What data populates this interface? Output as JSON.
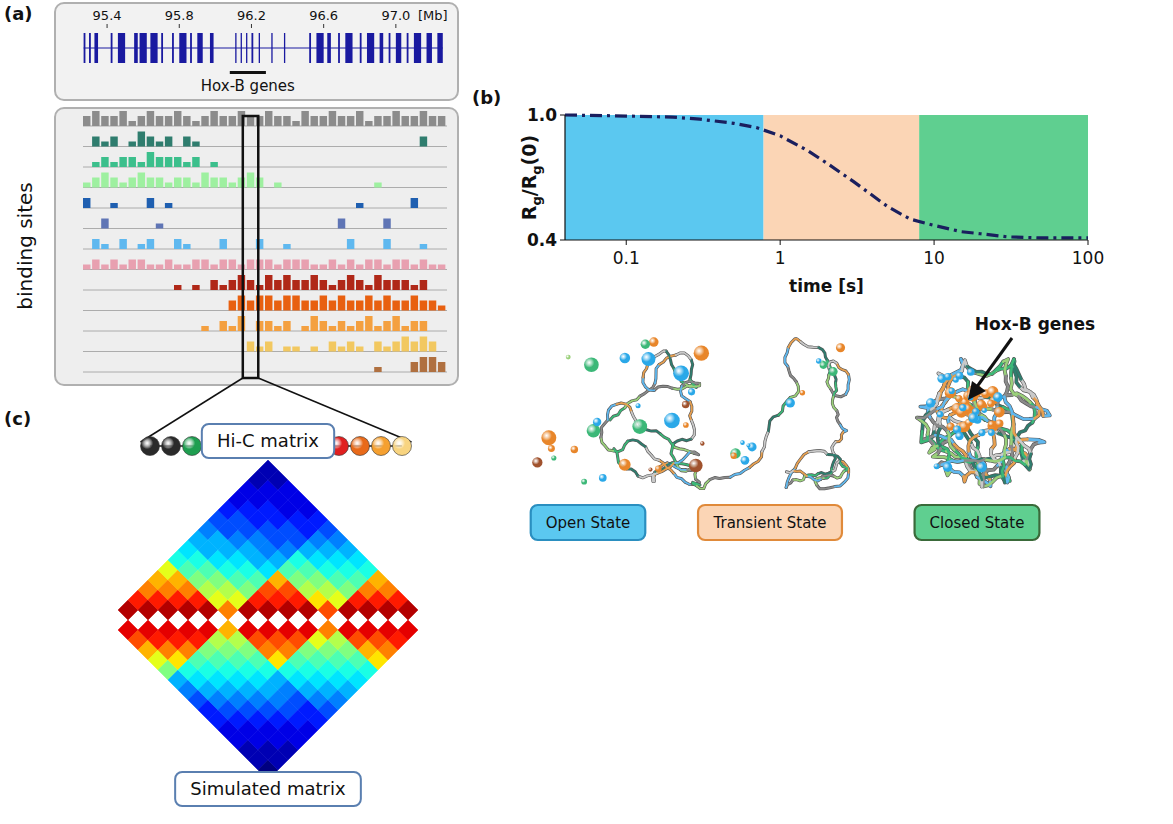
{
  "panel_a": {
    "letter": "(a)",
    "genome_axis": {
      "xlim": [
        95.25,
        97.3
      ],
      "ticks": [
        95.4,
        95.8,
        96.2,
        96.6,
        {
          "value": 97,
          "label": "97.0"
        }
      ],
      "unit": "[Mb]"
    },
    "genes": [
      [
        95.27,
        95.28
      ],
      [
        95.3,
        95.31
      ],
      [
        95.33,
        95.35
      ],
      [
        95.42,
        95.43
      ],
      [
        95.46,
        95.5
      ],
      [
        95.55,
        95.57
      ],
      [
        95.58,
        95.62
      ],
      [
        95.64,
        95.68
      ],
      [
        95.7,
        95.71
      ],
      [
        95.76,
        95.77
      ],
      [
        95.8,
        95.84
      ],
      [
        95.86,
        95.87
      ],
      [
        95.9,
        95.93
      ],
      [
        95.97,
        95.99
      ],
      [
        96.11,
        96.115
      ],
      [
        96.14,
        96.145
      ],
      [
        96.17,
        96.175
      ],
      [
        96.2,
        96.21
      ],
      [
        96.24,
        96.245
      ],
      [
        96.31,
        96.315
      ],
      [
        96.38,
        96.385
      ],
      [
        96.52,
        96.53
      ],
      [
        96.56,
        96.6
      ],
      [
        96.62,
        96.64
      ],
      [
        96.68,
        96.69
      ],
      [
        96.72,
        96.76
      ],
      [
        96.8,
        96.81
      ],
      [
        96.84,
        96.88
      ],
      [
        96.91,
        96.93
      ],
      [
        96.96,
        96.97
      ],
      [
        97.0,
        97.03
      ],
      [
        97.06,
        97.07
      ],
      [
        97.1,
        97.14
      ],
      [
        97.17,
        97.2
      ],
      [
        97.23,
        97.26
      ]
    ],
    "gene_cluster": {
      "label": "Hox-B genes",
      "from": 96.08,
      "to": 96.28
    },
    "tracks_title": "binding sites",
    "tracks": [
      {
        "color": "#8c8c8c",
        "values": [
          2,
          3,
          2,
          2,
          3,
          1,
          2,
          3,
          2,
          2,
          3,
          2,
          1,
          2,
          3,
          2,
          2,
          3,
          2,
          2,
          3,
          2,
          2,
          1,
          3,
          2,
          2,
          3,
          2,
          2,
          3,
          1,
          2,
          2,
          3,
          2,
          2,
          3,
          2,
          2
        ]
      },
      {
        "color": "#2f7d6e",
        "values": [
          0,
          2,
          1,
          2,
          0,
          1,
          3,
          2,
          1,
          2,
          0,
          2,
          1,
          0,
          0,
          0,
          0,
          0,
          0,
          0,
          0,
          0,
          0,
          0,
          0,
          0,
          0,
          0,
          0,
          0,
          0,
          0,
          0,
          0,
          0,
          0,
          0,
          2,
          0,
          0
        ]
      },
      {
        "color": "#3cbf8c",
        "values": [
          0,
          1,
          2,
          1,
          2,
          2,
          1,
          3,
          2,
          2,
          2,
          1,
          2,
          0,
          1,
          0,
          0,
          0,
          0,
          0,
          0,
          0,
          0,
          0,
          0,
          0,
          0,
          0,
          0,
          0,
          0,
          0,
          0,
          0,
          0,
          0,
          0,
          0,
          0,
          0
        ]
      },
      {
        "color": "#9ef0a0",
        "values": [
          1,
          2,
          3,
          2,
          1,
          2,
          3,
          2,
          2,
          1,
          2,
          2,
          1,
          3,
          2,
          2,
          1,
          2,
          3,
          2,
          0,
          1,
          0,
          0,
          0,
          0,
          0,
          0,
          0,
          0,
          0,
          0,
          1,
          0,
          0,
          0,
          0,
          0,
          0,
          0
        ]
      },
      {
        "color": "#1f5fb0",
        "values": [
          2,
          0,
          0,
          1,
          0,
          0,
          0,
          2,
          0,
          1,
          0,
          0,
          0,
          0,
          0,
          0,
          0,
          0,
          0,
          0,
          0,
          0,
          0,
          0,
          0,
          0,
          0,
          0,
          0,
          0,
          1,
          0,
          0,
          0,
          0,
          0,
          2,
          0,
          0,
          0
        ]
      },
      {
        "color": "#5f75b5",
        "values": [
          0,
          0,
          2,
          0,
          0,
          0,
          0,
          0,
          1,
          0,
          0,
          0,
          0,
          0,
          0,
          0,
          0,
          0,
          0,
          0,
          0,
          0,
          0,
          0,
          0,
          0,
          0,
          0,
          2,
          0,
          0,
          0,
          0,
          2,
          0,
          0,
          0,
          0,
          0,
          0
        ]
      },
      {
        "color": "#5fb8ef",
        "values": [
          0,
          2,
          1,
          0,
          2,
          0,
          1,
          2,
          0,
          0,
          2,
          1,
          0,
          0,
          0,
          2,
          0,
          0,
          0,
          2,
          0,
          0,
          1,
          0,
          0,
          0,
          0,
          0,
          0,
          2,
          0,
          0,
          0,
          2,
          0,
          0,
          0,
          1,
          0,
          0
        ]
      },
      {
        "color": "#e8a0b0",
        "values": [
          1,
          2,
          1,
          2,
          1,
          2,
          2,
          1,
          1,
          2,
          1,
          1,
          2,
          2,
          1,
          2,
          2,
          1,
          2,
          2,
          2,
          1,
          2,
          2,
          2,
          1,
          1,
          2,
          1,
          2,
          1,
          2,
          2,
          1,
          2,
          2,
          1,
          2,
          1,
          1
        ]
      },
      {
        "color": "#b02818",
        "values": [
          0,
          0,
          0,
          0,
          0,
          0,
          0,
          0,
          0,
          0,
          1,
          0,
          1,
          0,
          2,
          1,
          2,
          3,
          2,
          1,
          3,
          2,
          3,
          2,
          2,
          3,
          2,
          1,
          2,
          3,
          2,
          1,
          3,
          2,
          2,
          2,
          1,
          2,
          0,
          0
        ]
      },
      {
        "color": "#e86010",
        "values": [
          0,
          0,
          0,
          0,
          0,
          0,
          0,
          0,
          0,
          0,
          0,
          0,
          0,
          0,
          0,
          0,
          2,
          3,
          2,
          3,
          3,
          2,
          3,
          3,
          2,
          2,
          3,
          2,
          3,
          2,
          2,
          3,
          2,
          3,
          2,
          2,
          3,
          2,
          2,
          1
        ]
      },
      {
        "color": "#f4a040",
        "values": [
          0,
          0,
          0,
          0,
          0,
          0,
          0,
          0,
          0,
          0,
          0,
          0,
          0,
          1,
          0,
          2,
          1,
          3,
          0,
          2,
          2,
          1,
          2,
          0,
          1,
          3,
          2,
          1,
          2,
          1,
          2,
          3,
          1,
          2,
          3,
          1,
          2,
          2,
          0,
          0
        ]
      },
      {
        "color": "#f2c860",
        "values": [
          0,
          0,
          0,
          0,
          0,
          0,
          0,
          0,
          0,
          0,
          0,
          0,
          0,
          0,
          0,
          0,
          0,
          0,
          2,
          1,
          2,
          0,
          1,
          1,
          0,
          1,
          0,
          2,
          1,
          2,
          1,
          0,
          2,
          1,
          2,
          3,
          2,
          3,
          2,
          0
        ]
      },
      {
        "color": "#b07040",
        "values": [
          0,
          0,
          0,
          0,
          0,
          0,
          0,
          0,
          0,
          0,
          0,
          0,
          0,
          0,
          0,
          0,
          0,
          0,
          0,
          0,
          0,
          0,
          0,
          0,
          0,
          0,
          0,
          0,
          0,
          0,
          0,
          0,
          1,
          0,
          0,
          0,
          2,
          3,
          3,
          2
        ]
      }
    ],
    "highlight_bin": 18,
    "bead_colors": [
      "#2a2a2a",
      "#2a2a2a",
      "#1f9e50",
      "#7fe08a",
      "#2a2a2a",
      "#2a2a2a",
      "#2a2a2a",
      "#2aa8e8",
      "#d9a0a0",
      "#e02020",
      "#e86a1a",
      "#f5a030",
      "#f8d480"
    ]
  },
  "chart_data": {
    "type": "line",
    "xlabel": "time [s]",
    "ylabel": [
      "R",
      "g",
      "/R",
      "g",
      "(0)"
    ],
    "log": "x",
    "xlim": [
      0.04,
      100
    ],
    "xticks": [
      0.1,
      1,
      10,
      100
    ],
    "ylim": [
      0.4,
      1
    ],
    "yticks": [
      0.4,
      {
        "value": 1,
        "label": "1.0"
      }
    ],
    "x": [
      0.04,
      0.1,
      0.2,
      0.3,
      0.5,
      0.7,
      1,
      1.5,
      2,
      3,
      5,
      7,
      10,
      15,
      20,
      30,
      50,
      100
    ],
    "values": [
      1.0,
      0.995,
      0.99,
      0.98,
      0.96,
      0.94,
      0.9,
      0.83,
      0.77,
      0.68,
      0.56,
      0.5,
      0.47,
      0.44,
      0.43,
      0.415,
      0.41,
      0.41
    ],
    "color": "#1a1f5e",
    "line_style": "dashdot",
    "regions": [
      {
        "from": 0.04,
        "to": 0.78,
        "color": "#5bc8f0"
      },
      {
        "from": 0.78,
        "to": 8,
        "color": "#fbd5b5"
      },
      {
        "from": 8,
        "to": 100,
        "color": "#5fcf90"
      }
    ]
  },
  "panel_b": {
    "letter": "(b)",
    "annotation": "Hox-B genes",
    "states": [
      {
        "label": "Open State",
        "fill": "#5bc8f0",
        "stroke": "#2a8fc0"
      },
      {
        "label": "Transient State",
        "fill": "#fbd5b5",
        "stroke": "#e08a3a"
      },
      {
        "label": "Closed State",
        "fill": "#5fcf90",
        "stroke": "#3a6a3a"
      }
    ]
  },
  "panel_c": {
    "letter": "(c)",
    "top_label": "Hi-C matrix",
    "bottom_label": "Simulated matrix",
    "color_range": [
      0,
      1
    ],
    "cells": [
      [
        null,
        0.95,
        0.85,
        0.75,
        0.7,
        0.6,
        0.4,
        0.35,
        0.3,
        0.25,
        0.2,
        0.15,
        0.1,
        0.1,
        0.05,
        0.05
      ],
      [
        0.9,
        null,
        0.95,
        0.85,
        0.75,
        0.7,
        0.45,
        0.4,
        0.3,
        0.3,
        0.2,
        0.2,
        0.15,
        0.1,
        0.1,
        0.05
      ],
      [
        0.8,
        0.9,
        null,
        0.95,
        0.85,
        0.75,
        0.5,
        0.45,
        0.35,
        0.3,
        0.25,
        0.2,
        0.15,
        0.15,
        0.1,
        0.1
      ],
      [
        0.7,
        0.85,
        0.9,
        null,
        0.95,
        0.85,
        0.55,
        0.5,
        0.4,
        0.35,
        0.3,
        0.25,
        0.2,
        0.15,
        0.1,
        0.1
      ],
      [
        0.6,
        0.75,
        0.85,
        0.9,
        null,
        0.95,
        0.6,
        0.55,
        0.45,
        0.4,
        0.3,
        0.25,
        0.2,
        0.2,
        0.15,
        0.1
      ],
      [
        0.5,
        0.65,
        0.75,
        0.85,
        0.9,
        null,
        0.75,
        0.6,
        0.5,
        0.45,
        0.35,
        0.3,
        0.25,
        0.2,
        0.15,
        0.15
      ],
      [
        0.3,
        0.4,
        0.45,
        0.5,
        0.55,
        0.7,
        null,
        0.95,
        0.85,
        0.8,
        0.7,
        0.45,
        0.4,
        0.3,
        0.25,
        0.2
      ],
      [
        0.25,
        0.35,
        0.4,
        0.45,
        0.5,
        0.55,
        0.9,
        null,
        0.95,
        0.85,
        0.8,
        0.5,
        0.45,
        0.35,
        0.3,
        0.25
      ],
      [
        0.2,
        0.3,
        0.35,
        0.4,
        0.45,
        0.5,
        0.8,
        0.9,
        null,
        0.95,
        0.85,
        0.55,
        0.5,
        0.4,
        0.35,
        0.3
      ],
      [
        0.15,
        0.25,
        0.3,
        0.35,
        0.4,
        0.45,
        0.75,
        0.8,
        0.9,
        null,
        0.95,
        0.65,
        0.55,
        0.45,
        0.4,
        0.35
      ],
      [
        0.15,
        0.2,
        0.25,
        0.3,
        0.35,
        0.4,
        0.65,
        0.75,
        0.8,
        0.9,
        null,
        0.8,
        0.6,
        0.5,
        0.45,
        0.4
      ],
      [
        0.1,
        0.15,
        0.2,
        0.25,
        0.3,
        0.3,
        0.4,
        0.45,
        0.5,
        0.6,
        0.75,
        null,
        0.95,
        0.85,
        0.75,
        0.7
      ],
      [
        0.1,
        0.1,
        0.15,
        0.2,
        0.25,
        0.25,
        0.35,
        0.4,
        0.45,
        0.5,
        0.55,
        0.9,
        null,
        0.95,
        0.85,
        0.75
      ],
      [
        0.05,
        0.1,
        0.1,
        0.15,
        0.2,
        0.2,
        0.3,
        0.35,
        0.4,
        0.45,
        0.5,
        0.8,
        0.9,
        null,
        0.95,
        0.85
      ],
      [
        0.05,
        0.05,
        0.1,
        0.1,
        0.15,
        0.15,
        0.25,
        0.3,
        0.35,
        0.4,
        0.45,
        0.7,
        0.8,
        0.9,
        null,
        0.95
      ],
      [
        0,
        0.05,
        0.05,
        0.1,
        0.1,
        0.15,
        0.2,
        0.25,
        0.3,
        0.35,
        0.4,
        0.65,
        0.75,
        0.85,
        0.9,
        null
      ]
    ]
  }
}
